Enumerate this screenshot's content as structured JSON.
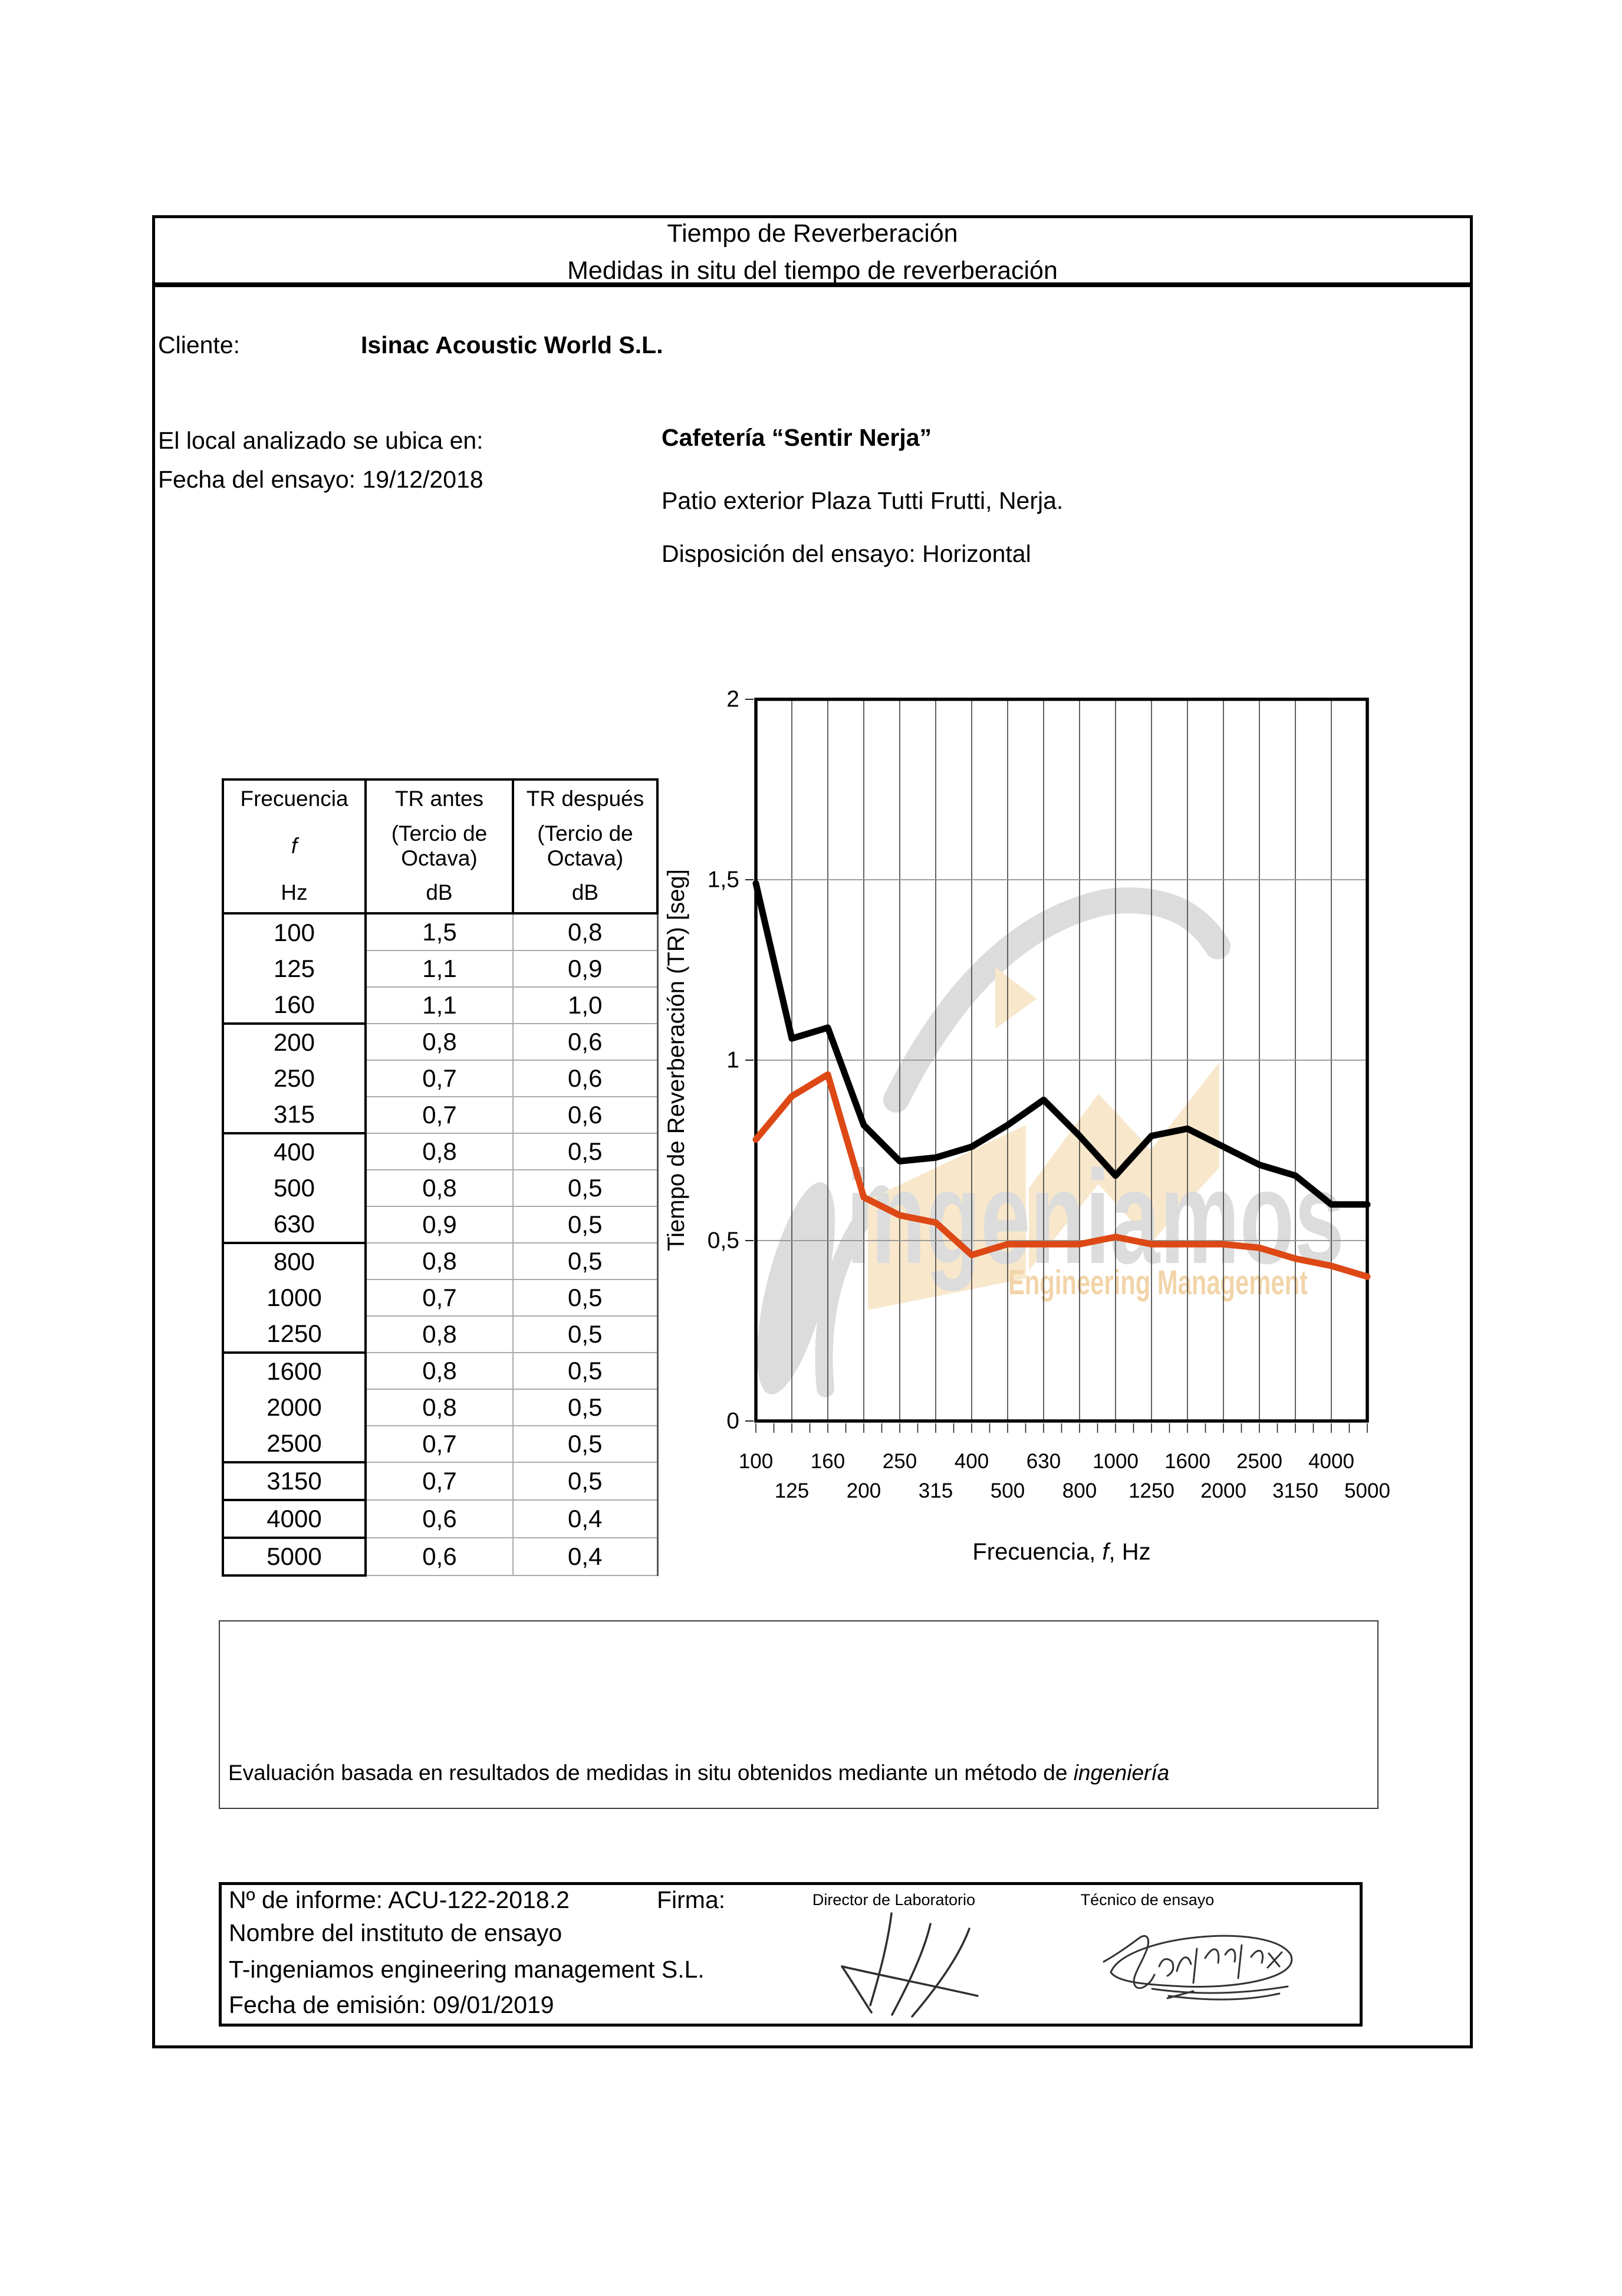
{
  "header": {
    "title_line1": "Tiempo de Reverberación",
    "title_line2": "Medidas in situ del tiempo de reverberación"
  },
  "client": {
    "label": "Cliente:",
    "name": "Isinac Acoustic World S.L."
  },
  "info": {
    "location_label": "El local analizado se ubica en:",
    "test_date": "Fecha del ensayo: 19/12/2018",
    "venue": "Cafetería “Sentir Nerja”",
    "address": "Patio exterior Plaza Tutti Frutti, Nerja.",
    "arrangement": "Disposición del ensayo: Horizontal"
  },
  "table": {
    "header": {
      "col1_top": "Frecuencia",
      "col1_mid_italic": "f",
      "col1_bottom": "Hz",
      "col2_top": "TR antes",
      "col2_mid1": "(Tercio de",
      "col2_mid2": "Octava)",
      "col2_bottom": "dB",
      "col3_top": "TR después",
      "col3_mid1": "(Tercio de",
      "col3_mid2": "Octava)",
      "col3_bottom": "dB"
    },
    "rows": [
      {
        "f": "100",
        "antes": "1,5",
        "despues": "0,8"
      },
      {
        "f": "125",
        "antes": "1,1",
        "despues": "0,9"
      },
      {
        "f": "160",
        "antes": "1,1",
        "despues": "1,0"
      },
      {
        "f": "200",
        "antes": "0,8",
        "despues": "0,6"
      },
      {
        "f": "250",
        "antes": "0,7",
        "despues": "0,6"
      },
      {
        "f": "315",
        "antes": "0,7",
        "despues": "0,6"
      },
      {
        "f": "400",
        "antes": "0,8",
        "despues": "0,5"
      },
      {
        "f": "500",
        "antes": "0,8",
        "despues": "0,5"
      },
      {
        "f": "630",
        "antes": "0,9",
        "despues": "0,5"
      },
      {
        "f": "800",
        "antes": "0,8",
        "despues": "0,5"
      },
      {
        "f": "1000",
        "antes": "0,7",
        "despues": "0,5"
      },
      {
        "f": "1250",
        "antes": "0,8",
        "despues": "0,5"
      },
      {
        "f": "1600",
        "antes": "0,8",
        "despues": "0,5"
      },
      {
        "f": "2000",
        "antes": "0,8",
        "despues": "0,5"
      },
      {
        "f": "2500",
        "antes": "0,7",
        "despues": "0,5"
      },
      {
        "f": "3150",
        "antes": "0,7",
        "despues": "0,5"
      },
      {
        "f": "4000",
        "antes": "0,6",
        "despues": "0,4"
      },
      {
        "f": "5000",
        "antes": "0,6",
        "despues": "0,4"
      }
    ],
    "octave_groups": [
      3,
      3,
      3,
      3,
      3,
      1,
      1,
      1
    ]
  },
  "chart_data": {
    "type": "line",
    "categories": [
      100,
      125,
      160,
      200,
      250,
      315,
      400,
      500,
      630,
      800,
      1000,
      1250,
      1600,
      2000,
      2500,
      3150,
      4000,
      5000
    ],
    "x_tick_labels_row1": [
      "100",
      "160",
      "250",
      "400",
      "630",
      "1000",
      "1600",
      "2500",
      "4000"
    ],
    "x_tick_labels_row2": [
      "125",
      "200",
      "315",
      "500",
      "800",
      "1250",
      "2000",
      "3150",
      "5000"
    ],
    "y_ticks": [
      {
        "label": "0",
        "value": 0
      },
      {
        "label": "0,5",
        "value": 0.5
      },
      {
        "label": "1",
        "value": 1
      },
      {
        "label": "1,5",
        "value": 1.5
      },
      {
        "label": "2",
        "value": 2
      }
    ],
    "ylim": [
      0,
      2
    ],
    "grid": {
      "vertical_per_category": true,
      "horizontal_at": [
        0.5,
        1,
        1.5
      ]
    },
    "xlabel_parts": [
      "Frecuencia, ",
      "f",
      ", Hz"
    ],
    "ylabel": "Tiempo de Reverberación (TR) [seg]",
    "legend_position": "none",
    "series": [
      {
        "name": "TR antes (Tercio de Octava)",
        "color": "#000000",
        "values": [
          1.49,
          1.06,
          1.09,
          0.82,
          0.72,
          0.73,
          0.76,
          0.82,
          0.89,
          0.79,
          0.68,
          0.79,
          0.81,
          0.76,
          0.71,
          0.68,
          0.6,
          0.6
        ]
      },
      {
        "name": "TR después (Tercio de Octava)",
        "color": "#dd4814",
        "values": [
          0.78,
          0.9,
          0.96,
          0.62,
          0.57,
          0.55,
          0.46,
          0.49,
          0.49,
          0.49,
          0.51,
          0.49,
          0.49,
          0.49,
          0.48,
          0.45,
          0.43,
          0.4
        ]
      }
    ]
  },
  "watermark": {
    "word": "ingeniamos",
    "subtitle": "Engineering Management",
    "word_color": "#dcdcdc",
    "subtitle_color": "#f2d4a9",
    "shape_color": "#f8e7cb"
  },
  "evaluation": {
    "text": "Evaluación basada en resultados de medidas in situ obtenidos mediante un método de ",
    "italic": "ingeniería"
  },
  "footer": {
    "report_number": "Nº de informe: ACU-122-2018.2",
    "firma_label": "Firma:",
    "director_label": "Director de Laboratorio",
    "tecnico_label": "Técnico de ensayo",
    "institute_label": "Nombre del instituto de ensayo",
    "institute_name": "T-ingeniamos engineering management S.L.",
    "emission_date": "Fecha de emisión: 09/01/2019"
  }
}
